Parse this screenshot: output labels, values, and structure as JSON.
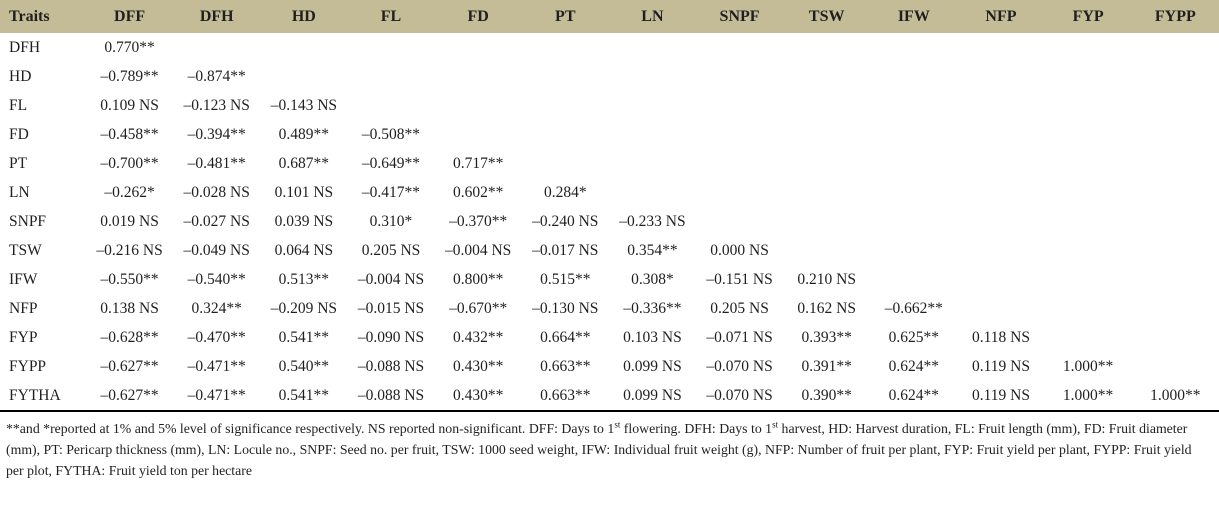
{
  "page": {
    "background": "#ffffff",
    "header_bg": "#c4bb97",
    "rule_color": "#000000",
    "text_color": "#1f1f1f"
  },
  "table": {
    "columns": [
      "Traits",
      "DFF",
      "DFH",
      "HD",
      "FL",
      "FD",
      "PT",
      "LN",
      "SNPF",
      "TSW",
      "IFW",
      "NFP",
      "FYP",
      "FYPP"
    ],
    "rows": [
      {
        "label": "DFH",
        "values": [
          "0.770**"
        ]
      },
      {
        "label": "HD",
        "values": [
          "–0.789**",
          "–0.874**"
        ]
      },
      {
        "label": "FL",
        "values": [
          "0.109 NS",
          "–0.123 NS",
          "–0.143 NS"
        ]
      },
      {
        "label": "FD",
        "values": [
          "–0.458**",
          "–0.394**",
          "0.489**",
          "–0.508**"
        ]
      },
      {
        "label": "PT",
        "values": [
          "–0.700**",
          "–0.481**",
          "0.687**",
          "–0.649**",
          "0.717**"
        ]
      },
      {
        "label": "LN",
        "values": [
          "–0.262*",
          "–0.028 NS",
          "0.101 NS",
          "–0.417**",
          "0.602**",
          "0.284*"
        ]
      },
      {
        "label": "SNPF",
        "values": [
          "0.019 NS",
          "–0.027 NS",
          "0.039 NS",
          "0.310*",
          "–0.370**",
          "–0.240 NS",
          "–0.233 NS"
        ]
      },
      {
        "label": "TSW",
        "values": [
          "–0.216 NS",
          "–0.049 NS",
          "0.064 NS",
          "0.205 NS",
          "–0.004 NS",
          "–0.017 NS",
          "0.354**",
          "0.000 NS"
        ]
      },
      {
        "label": "IFW",
        "values": [
          "–0.550**",
          "–0.540**",
          "0.513**",
          "–0.004 NS",
          "0.800**",
          "0.515**",
          "0.308*",
          "–0.151 NS",
          "0.210 NS"
        ]
      },
      {
        "label": "NFP",
        "values": [
          "0.138 NS",
          "0.324**",
          "–0.209 NS",
          "–0.015 NS",
          "–0.670**",
          "–0.130 NS",
          "–0.336**",
          "0.205 NS",
          "0.162 NS",
          "–0.662**"
        ]
      },
      {
        "label": "FYP",
        "values": [
          "–0.628**",
          "–0.470**",
          "0.541**",
          "–0.090 NS",
          "0.432**",
          "0.664**",
          "0.103 NS",
          "–0.071 NS",
          "0.393**",
          "0.625**",
          "0.118 NS"
        ]
      },
      {
        "label": "FYPP",
        "values": [
          "–0.627**",
          "–0.471**",
          "0.540**",
          "–0.088 NS",
          "0.430**",
          "0.663**",
          "0.099 NS",
          "–0.070 NS",
          "0.391**",
          "0.624**",
          "0.119 NS",
          "1.000**"
        ]
      },
      {
        "label": "FYTHA",
        "values": [
          "–0.627**",
          "–0.471**",
          "0.541**",
          "–0.088 NS",
          "0.430**",
          "0.663**",
          "0.099 NS",
          "–0.070 NS",
          "0.390**",
          "0.624**",
          "0.119 NS",
          "1.000**",
          "1.000**"
        ]
      }
    ]
  },
  "footnote": {
    "segments": [
      {
        "text": "**and *reported at 1% and 5% level of significance respectively. NS reported non-significant. DFF: Days to 1",
        "sup": false
      },
      {
        "text": "st",
        "sup": true
      },
      {
        "text": " flowering. DFH: Days to 1",
        "sup": false
      },
      {
        "text": "st",
        "sup": true
      },
      {
        "text": " harvest, HD: Harvest duration, FL: Fruit length (mm), FD: Fruit diameter (mm), PT: Pericarp thickness (mm), LN: Locule no., SNPF: Seed no. per fruit, TSW: 1000 seed weight, IFW: Individual fruit weight (g), NFP: Number of fruit per plant, FYP: Fruit yield per plant, FYPP: Fruit yield per plot, FYTHA: Fruit yield ton per hectare",
        "sup": false
      }
    ]
  },
  "chart_data": {
    "type": "table",
    "title": "Pearson correlation matrix among chilli/fruit yield traits",
    "columns": [
      "Traits",
      "DFF",
      "DFH",
      "HD",
      "FL",
      "FD",
      "PT",
      "LN",
      "SNPF",
      "TSW",
      "IFW",
      "NFP",
      "FYP",
      "FYPP"
    ],
    "row_labels": [
      "DFH",
      "HD",
      "FL",
      "FD",
      "PT",
      "LN",
      "SNPF",
      "TSW",
      "IFW",
      "NFP",
      "FYP",
      "FYPP",
      "FYTHA"
    ],
    "layout": "lower-triangular correlation matrix; ** = significant at 1%, * = significant at 5%, NS = non-significant"
  }
}
